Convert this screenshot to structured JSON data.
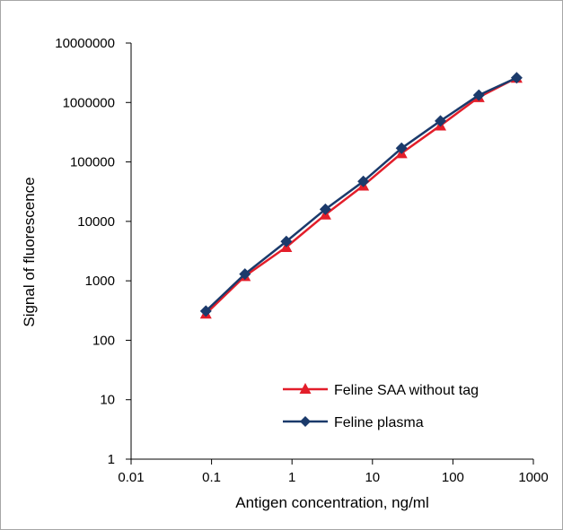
{
  "chart_data": {
    "type": "line",
    "title": "",
    "xlabel": "Antigen concentration, ng/ml",
    "ylabel": "Signal of fluorescence",
    "x_scale": "log",
    "y_scale": "log",
    "xlim": [
      0.01,
      1000
    ],
    "ylim": [
      1,
      10000000
    ],
    "x_ticks": [
      "0.01",
      "0.1",
      "1",
      "10",
      "100",
      "1000"
    ],
    "y_ticks": [
      "1",
      "10",
      "100",
      "1000",
      "10000",
      "100000",
      "1000000",
      "10000000"
    ],
    "grid": false,
    "legend_position": "bottom-right",
    "x": [
      0.085,
      0.26,
      0.85,
      2.6,
      7.7,
      23,
      70,
      210,
      620
    ],
    "series": [
      {
        "name": "Feline SAA without tag",
        "marker": "triangle",
        "color": "#e31e2a",
        "values": [
          280,
          1200,
          3700,
          13000,
          40000,
          140000,
          410000,
          1230000,
          2600000
        ]
      },
      {
        "name": "Feline plasma",
        "marker": "diamond",
        "color": "#1b3a6b",
        "values": [
          310,
          1300,
          4600,
          16000,
          47000,
          170000,
          490000,
          1330000,
          2600000
        ]
      }
    ]
  }
}
